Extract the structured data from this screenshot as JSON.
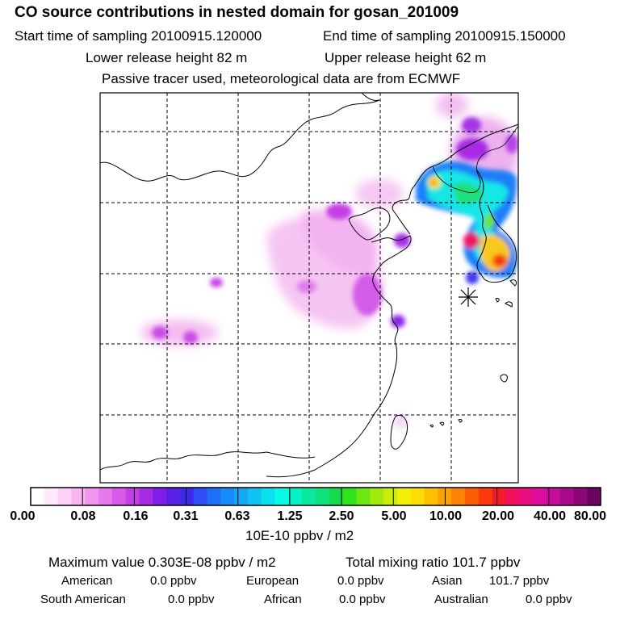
{
  "header": {
    "title": "CO  source contributions in nested domain for gosan_201009",
    "start_label": "Start time of sampling 20100915.120000",
    "end_label": "End time of sampling 20100915.150000",
    "lower_label": "Lower release height   82 m",
    "upper_label": "Upper release height   62 m",
    "note": "Passive tracer used, meteorological data are from ECMWF"
  },
  "colorbar": {
    "labels": [
      "0.00",
      "0.08",
      "0.16",
      "0.31",
      "0.63",
      "1.25",
      "2.50",
      "5.00",
      "10.00",
      "20.00",
      "40.00",
      "80.00"
    ],
    "units": "10E-10 ppbv / m2",
    "colors": [
      "#ffffff",
      "#ffe9fb",
      "#fdd1f7",
      "#f9b6f3",
      "#f295ee",
      "#e67aec",
      "#d95ae8",
      "#c43fe5",
      "#a82be6",
      "#7d1fe6",
      "#5a1fe6",
      "#3f28ee",
      "#2e4ef6",
      "#1f6ff8",
      "#168cf8",
      "#12a8f6",
      "#0fc4f4",
      "#0be0ef",
      "#07fae6",
      "#07f2c4",
      "#09e89e",
      "#0fe07a",
      "#17d94f",
      "#30e21a",
      "#6de813",
      "#a0ea10",
      "#cced0c",
      "#f1ef08",
      "#fcde06",
      "#fdc005",
      "#fda204",
      "#fd8204",
      "#fd5e05",
      "#fb3b0c",
      "#f51a2a",
      "#f0125e",
      "#e90f82",
      "#de0ea0",
      "#c60d9b",
      "#a90a8c",
      "#8b0777",
      "#6a0460"
    ]
  },
  "stats": {
    "max_line": "Maximum value  0.303E-08 ppbv / m2",
    "total_line": "Total mixing ratio      101.7 ppbv",
    "american": "American",
    "american_val": "0.0 ppbv",
    "european": "European",
    "european_val": "0.0 ppbv",
    "asian": "Asian",
    "asian_val": "101.7 ppbv",
    "south_american": "South American",
    "south_american_val": "0.0 ppbv",
    "african": "African",
    "african_val": "0.0 ppbv",
    "australian": "Australian",
    "australian_val": "0.0 ppbv"
  }
}
